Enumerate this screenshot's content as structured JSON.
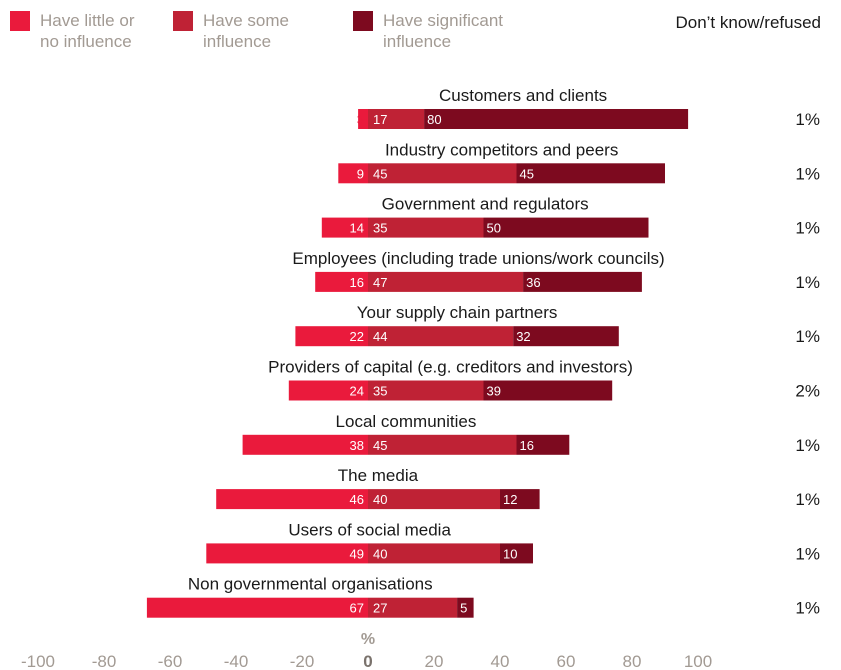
{
  "colors": {
    "little": "#ea1a3c",
    "some": "#bf2235",
    "significant": "#7d0a1f",
    "tick_text": "#a29a93"
  },
  "legend": {
    "items": [
      {
        "label": "Have little or\nno influence",
        "color": "#ea1a3c"
      },
      {
        "label": "Have some\ninfluence",
        "color": "#bf2235"
      },
      {
        "label": "Have significant\ninfluence",
        "color": "#7d0a1f"
      }
    ],
    "dont_know_header": "Don’t know/refused"
  },
  "chart_data": {
    "type": "bar",
    "orientation": "horizontal",
    "stacked": "diverging",
    "categories": [
      "Customers and clients",
      "Industry competitors and peers",
      "Government and regulators",
      "Employees (including trade unions/work councils)",
      "Your supply chain partners",
      "Providers of capital (e.g. creditors and investors)",
      "Local communities",
      "The media",
      "Users of social media",
      "Non governmental organisations"
    ],
    "series": [
      {
        "name": "Have little or no influence",
        "values": [
          3,
          9,
          14,
          16,
          22,
          24,
          38,
          46,
          49,
          67
        ],
        "direction": "negative",
        "color": "#ea1a3c"
      },
      {
        "name": "Have some influence",
        "values": [
          17,
          45,
          35,
          47,
          44,
          35,
          45,
          40,
          40,
          27
        ],
        "direction": "positive",
        "color": "#bf2235"
      },
      {
        "name": "Have significant influence",
        "values": [
          80,
          45,
          50,
          36,
          32,
          39,
          16,
          12,
          10,
          5
        ],
        "direction": "positive",
        "color": "#7d0a1f"
      }
    ],
    "dont_know_refused": [
      "1%",
      "1%",
      "1%",
      "1%",
      "1%",
      "2%",
      "1%",
      "1%",
      "1%",
      "1%"
    ],
    "xlim": [
      -100,
      100
    ],
    "xticks": [
      -100,
      -80,
      -60,
      -40,
      -20,
      0,
      20,
      40,
      60,
      80,
      100
    ],
    "xlabel": "%",
    "legend_position": "top"
  }
}
